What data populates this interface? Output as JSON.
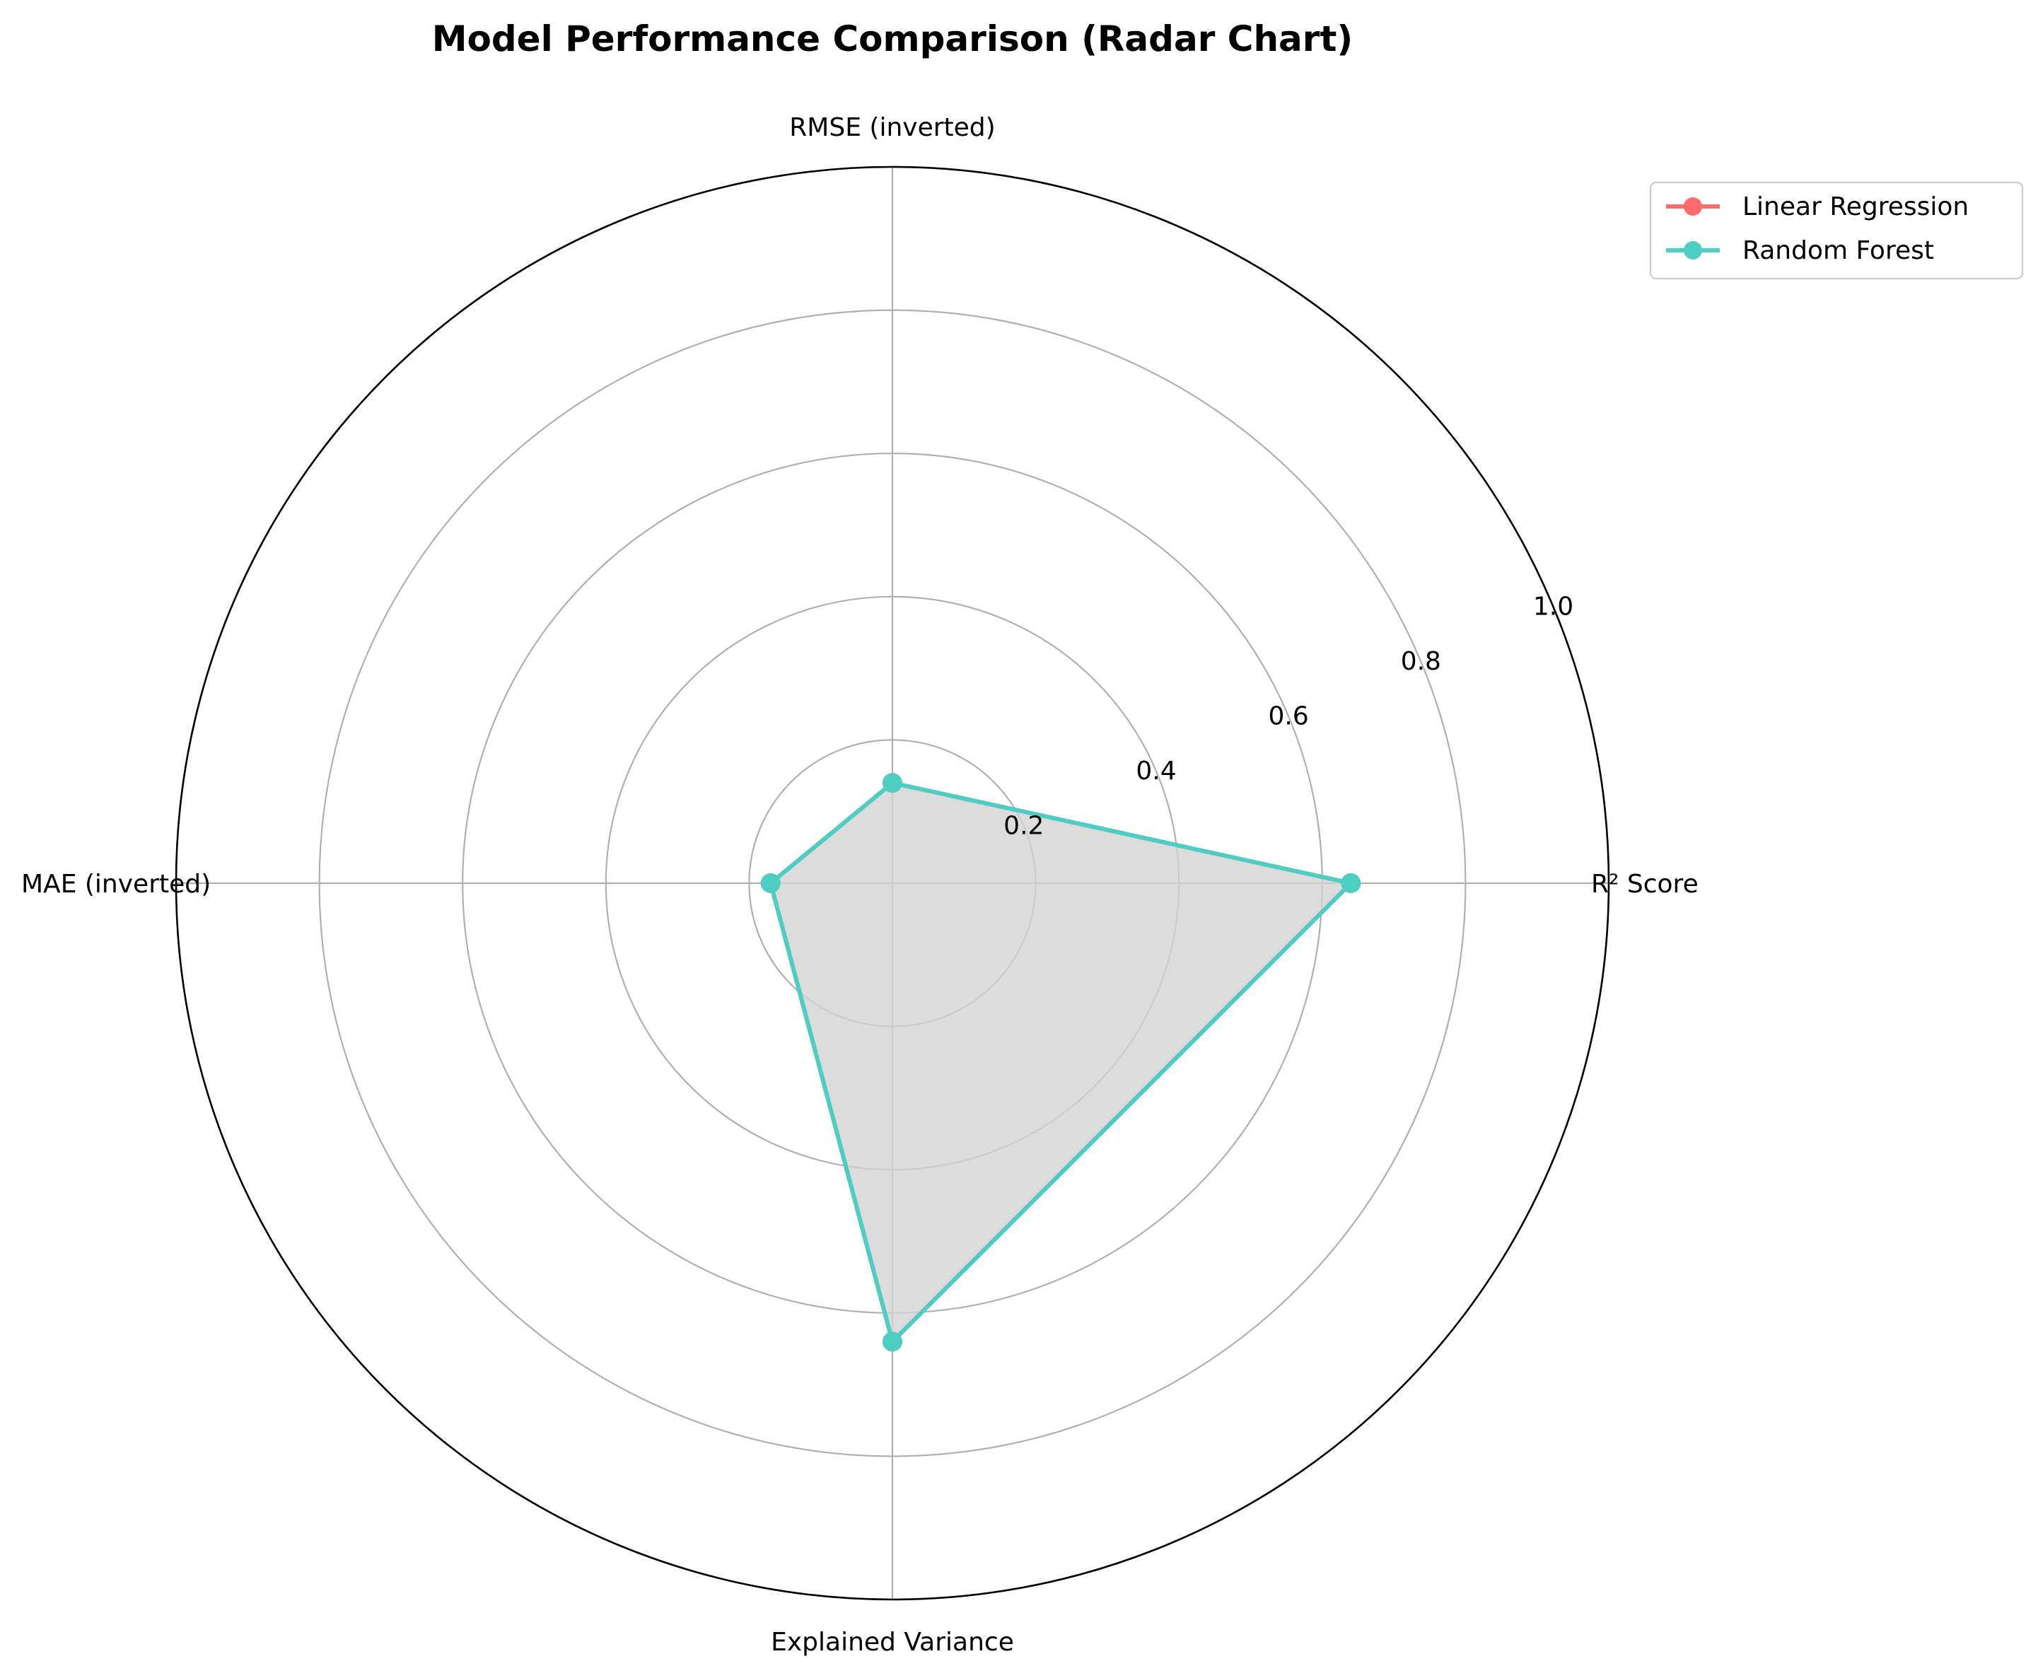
{
  "chart_data": {
    "type": "radar",
    "title": "Model Performance Comparison (Radar Chart)",
    "axes": [
      "R² Score",
      "RMSE (inverted)",
      "MAE (inverted)",
      "Explained Variance"
    ],
    "rlim": [
      0,
      1.0
    ],
    "r_ticks": [
      "0.2",
      "0.4",
      "0.6",
      "0.8",
      "1.0"
    ],
    "r_tick_values": [
      0.2,
      0.4,
      0.6,
      0.8,
      1.0
    ],
    "grid": true,
    "legend_position": "top-right",
    "series": [
      {
        "name": "Linear Regression",
        "color": "#ff6b6b",
        "values": [
          0.64,
          0.14,
          0.17,
          0.64
        ]
      },
      {
        "name": "Random Forest",
        "color": "#4ecdc4",
        "values": [
          0.64,
          0.14,
          0.17,
          0.64
        ]
      }
    ],
    "fill_color": "#d4d4d4"
  }
}
